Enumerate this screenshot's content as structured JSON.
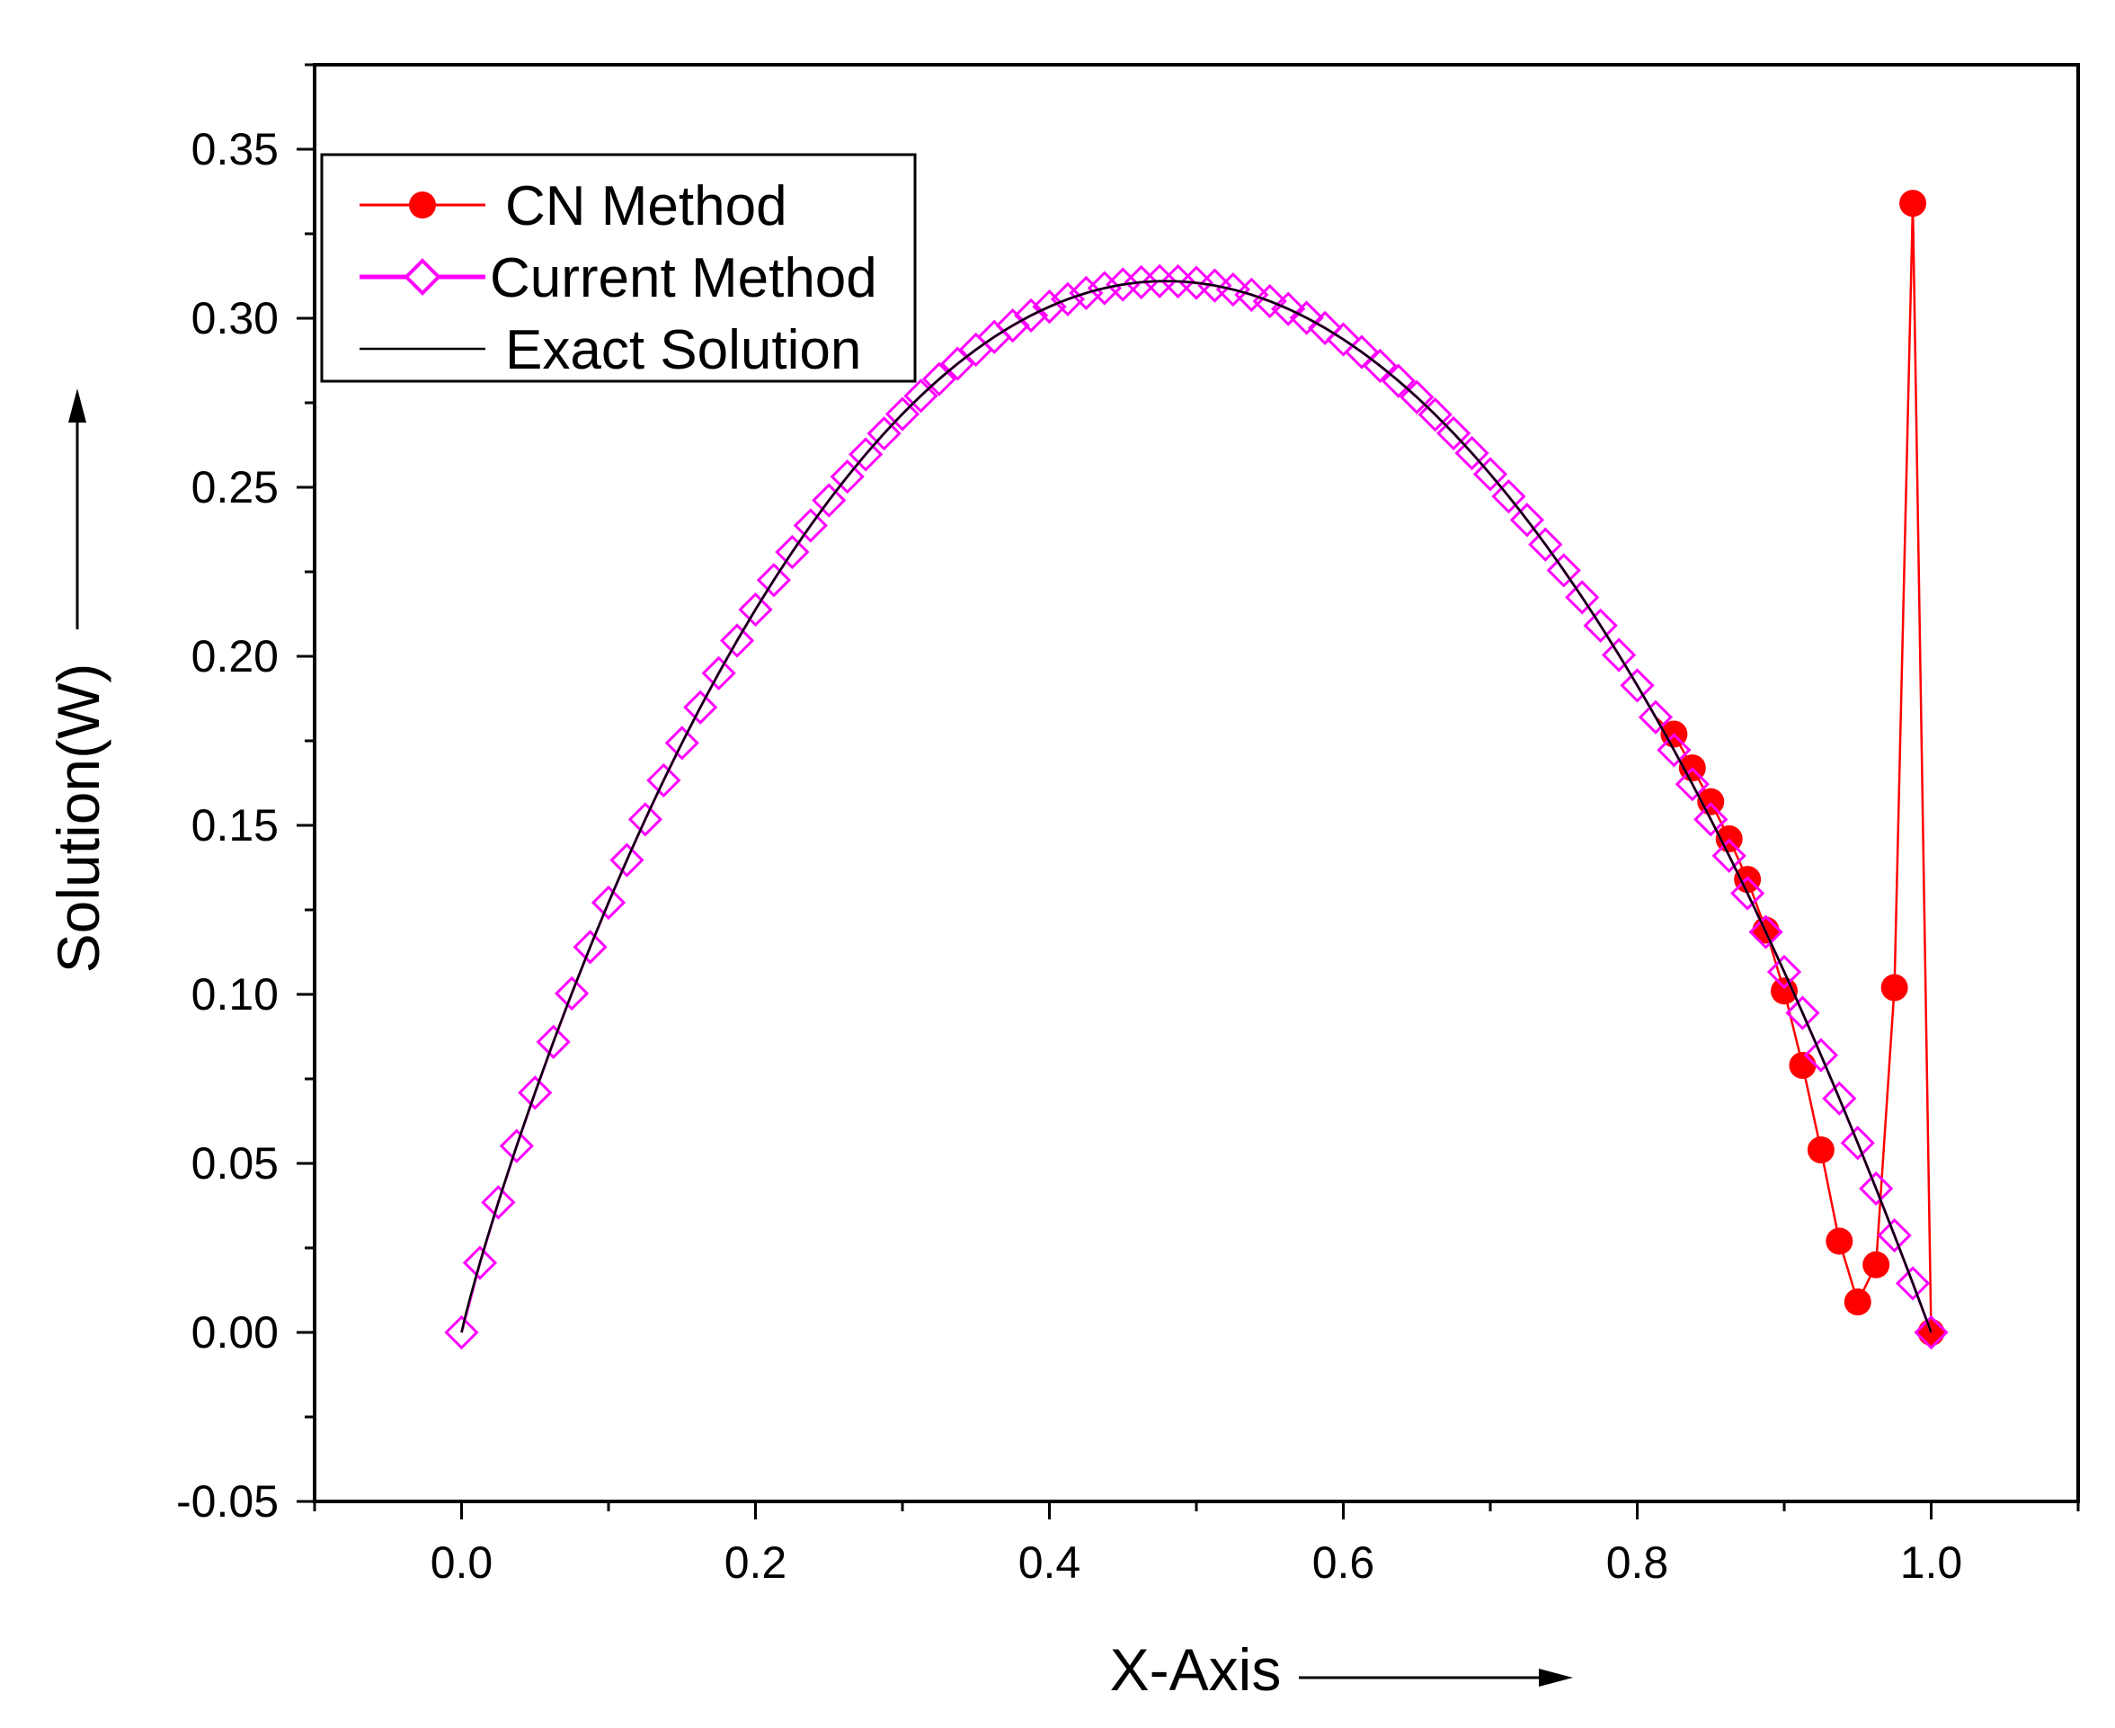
{
  "chart_data": {
    "type": "line",
    "title": "",
    "xlabel": "X-Axis",
    "ylabel": "Solution(W)",
    "xlim": [
      -0.1,
      1.1
    ],
    "ylim": [
      -0.05,
      0.375
    ],
    "xticks": [
      0.0,
      0.2,
      0.4,
      0.6,
      0.8,
      1.0
    ],
    "xtick_labels": [
      "0.0",
      "0.2",
      "0.4",
      "0.6",
      "0.8",
      "1.0"
    ],
    "yticks": [
      -0.05,
      0.0,
      0.05,
      0.1,
      0.15,
      0.2,
      0.25,
      0.3,
      0.35
    ],
    "ytick_labels": [
      "-0.05",
      "0.00",
      "0.05",
      "0.10",
      "0.15",
      "0.20",
      "0.25",
      "0.30",
      "0.35"
    ],
    "grid": false,
    "legend_position": "top-left",
    "series": [
      {
        "name": "CN Method",
        "color": "#ff0000",
        "marker": "filled-circle",
        "x": [
          0.825,
          0.8375,
          0.85,
          0.8625,
          0.875,
          0.8875,
          0.9,
          0.9125,
          0.925,
          0.9375,
          0.95,
          0.9625,
          0.975,
          0.9875,
          1.0
        ],
        "y": [
          0.177,
          0.167,
          0.157,
          0.146,
          0.134,
          0.119,
          0.101,
          0.079,
          0.054,
          0.027,
          0.009,
          0.02,
          0.102,
          0.334,
          0.0
        ]
      },
      {
        "name": "Current Method",
        "color": "#ff00ff",
        "marker": "open-diamond",
        "x_start": 0.0,
        "x_end": 1.0,
        "x_step": 0.0125,
        "function": "exact solution sampled at marker positions (81 points)"
      },
      {
        "name": "Exact Solution",
        "color": "#000000",
        "marker": "none",
        "peak": [
          0.52,
          0.311
        ]
      }
    ]
  }
}
